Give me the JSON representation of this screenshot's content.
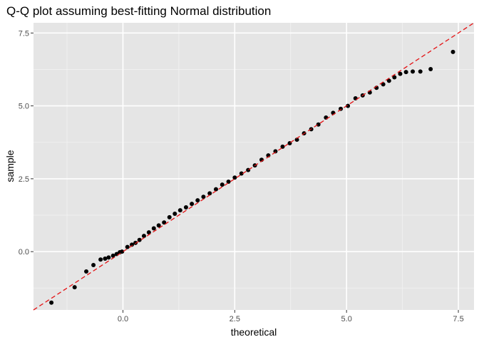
{
  "chart_data": {
    "type": "scatter",
    "title": "Q-Q plot assuming best-fitting Normal distribution",
    "xlabel": "theoretical",
    "ylabel": "sample",
    "xlim": [
      -2.0,
      7.85
    ],
    "ylim": [
      -2.0,
      7.85
    ],
    "x_ticks": [
      0.0,
      2.5,
      5.0,
      7.5
    ],
    "x_tick_labels": [
      "0.0",
      "2.5",
      "5.0",
      "7.5"
    ],
    "y_ticks": [
      0.0,
      2.5,
      5.0,
      7.5
    ],
    "y_tick_labels": [
      "0.0",
      "2.5",
      "5.0",
      "7.5"
    ],
    "grid": true,
    "panel_background": "#e5e5e5",
    "point_color": "#000000",
    "reference_line": {
      "intercept": 0.0,
      "slope": 1.0,
      "color": "#e41a1c",
      "style": "dashed"
    },
    "points": {
      "x": [
        -1.6,
        -1.08,
        -0.82,
        -0.66,
        -0.5,
        -0.4,
        -0.32,
        -0.22,
        -0.14,
        -0.07,
        -0.02,
        0.1,
        0.2,
        0.28,
        0.37,
        0.47,
        0.58,
        0.69,
        0.8,
        0.92,
        1.04,
        1.16,
        1.28,
        1.41,
        1.54,
        1.67,
        1.8,
        1.94,
        2.08,
        2.22,
        2.36,
        2.5,
        2.65,
        2.8,
        2.95,
        3.1,
        3.25,
        3.41,
        3.57,
        3.73,
        3.89,
        4.05,
        4.21,
        4.37,
        4.54,
        4.7,
        4.87,
        5.03,
        5.2,
        5.36,
        5.52,
        5.67,
        5.82,
        5.95,
        6.07,
        6.2,
        6.33,
        6.48,
        6.65,
        6.88,
        7.38
      ],
      "y": [
        -1.75,
        -1.22,
        -0.68,
        -0.46,
        -0.27,
        -0.24,
        -0.2,
        -0.14,
        -0.08,
        -0.02,
        0.0,
        0.16,
        0.24,
        0.3,
        0.4,
        0.54,
        0.66,
        0.8,
        0.9,
        1.0,
        1.18,
        1.3,
        1.42,
        1.52,
        1.64,
        1.76,
        1.88,
        2.0,
        2.14,
        2.3,
        2.4,
        2.54,
        2.68,
        2.8,
        2.96,
        3.15,
        3.3,
        3.44,
        3.6,
        3.72,
        3.84,
        4.06,
        4.2,
        4.36,
        4.6,
        4.76,
        4.9,
        5.0,
        5.26,
        5.36,
        5.46,
        5.62,
        5.74,
        5.86,
        5.98,
        6.1,
        6.16,
        6.18,
        6.18,
        6.26,
        6.85
      ]
    }
  }
}
